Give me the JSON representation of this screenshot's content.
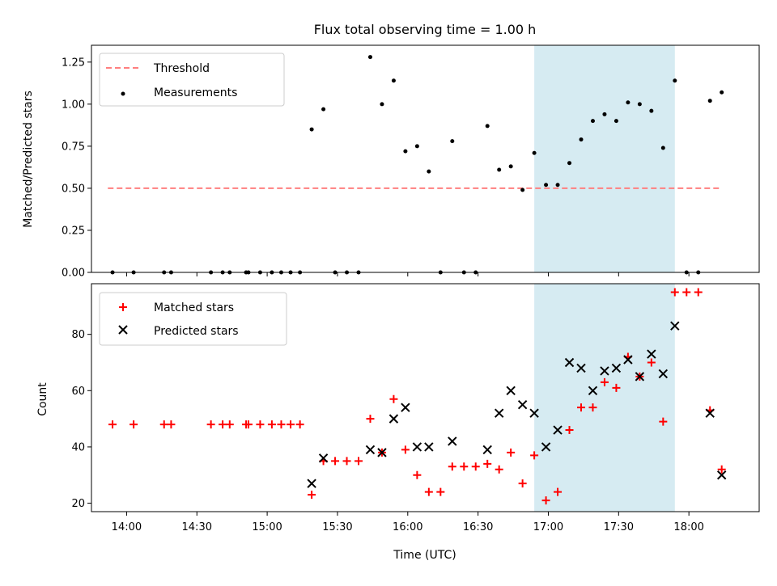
{
  "chart_data": [
    {
      "type": "scatter",
      "title": "Flux total observing time = 1.00 h",
      "xlabel": "",
      "ylabel": "Matched/Predicted stars",
      "xlim": [
        "13:45",
        "18:30"
      ],
      "ylim": [
        0,
        1.35
      ],
      "yticks": [
        "0.00",
        "0.25",
        "0.50",
        "0.75",
        "1.00",
        "1.25"
      ],
      "legend": "upper-left",
      "threshold": {
        "name": "Threshold",
        "value": 0.5,
        "x_range": [
          "13:52",
          "18:13"
        ],
        "color": "#ff7f7f"
      },
      "shaded_window": {
        "x_range": [
          "16:54",
          "17:54"
        ],
        "color": "#add8e6"
      },
      "series": [
        {
          "name": "Measurements",
          "color": "#000000",
          "x": [
            "13:54",
            "14:03",
            "14:16",
            "14:19",
            "14:36",
            "14:41",
            "14:44",
            "14:51",
            "14:52",
            "14:57",
            "15:02",
            "15:06",
            "15:10",
            "15:14",
            "15:19",
            "15:24",
            "15:29",
            "15:34",
            "15:39",
            "15:44",
            "15:49",
            "15:54",
            "15:59",
            "16:04",
            "16:09",
            "16:14",
            "16:19",
            "16:24",
            "16:29",
            "16:34",
            "16:39",
            "16:44",
            "16:49",
            "16:54",
            "16:59",
            "17:04",
            "17:09",
            "17:14",
            "17:19",
            "17:24",
            "17:29",
            "17:34",
            "17:39",
            "17:44",
            "17:49",
            "17:54",
            "17:59",
            "18:04",
            "18:09",
            "18:14"
          ],
          "y": [
            0,
            0,
            0,
            0,
            0,
            0,
            0,
            0,
            0,
            0,
            0,
            0,
            0,
            0,
            0.85,
            0.97,
            0,
            0,
            0,
            1.28,
            1.0,
            1.14,
            0.72,
            0.75,
            0.6,
            0,
            0.78,
            0,
            0,
            0.87,
            0.61,
            0.63,
            0.49,
            0.71,
            0.52,
            0.52,
            0.65,
            0.79,
            0.9,
            0.94,
            0.9,
            1.01,
            1.0,
            0.96,
            0.74,
            1.14,
            0,
            0,
            1.02,
            1.07
          ]
        }
      ]
    },
    {
      "type": "scatter",
      "title": "",
      "xlabel": "Time (UTC)",
      "ylabel": "Count",
      "xlim": [
        "13:45",
        "18:30"
      ],
      "ylim": [
        17,
        98
      ],
      "xticks": [
        "14:00",
        "14:30",
        "15:00",
        "15:30",
        "16:00",
        "16:30",
        "17:00",
        "17:30",
        "18:00"
      ],
      "yticks": [
        "20",
        "40",
        "60",
        "80"
      ],
      "legend": "upper-left",
      "shaded_window": {
        "x_range": [
          "16:54",
          "17:54"
        ],
        "color": "#add8e6"
      },
      "series": [
        {
          "name": "Matched stars",
          "color": "#ff0000",
          "marker": "+",
          "x": [
            "13:54",
            "14:03",
            "14:16",
            "14:19",
            "14:36",
            "14:41",
            "14:44",
            "14:51",
            "14:52",
            "14:57",
            "15:02",
            "15:06",
            "15:10",
            "15:14",
            "15:19",
            "15:24",
            "15:29",
            "15:34",
            "15:39",
            "15:44",
            "15:49",
            "15:54",
            "15:59",
            "16:04",
            "16:09",
            "16:14",
            "16:19",
            "16:24",
            "16:29",
            "16:34",
            "16:39",
            "16:44",
            "16:49",
            "16:54",
            "16:59",
            "17:04",
            "17:09",
            "17:14",
            "17:19",
            "17:24",
            "17:29",
            "17:34",
            "17:39",
            "17:44",
            "17:49",
            "17:54",
            "17:59",
            "18:04",
            "18:09",
            "18:14"
          ],
          "y": [
            48,
            48,
            48,
            48,
            48,
            48,
            48,
            48,
            48,
            48,
            48,
            48,
            48,
            48,
            23,
            35,
            35,
            35,
            35,
            50,
            38,
            57,
            39,
            30,
            24,
            24,
            33,
            33,
            33,
            34,
            32,
            38,
            27,
            37,
            21,
            24,
            46,
            54,
            54,
            63,
            61,
            72,
            65,
            70,
            49,
            95,
            95,
            95,
            53,
            32
          ]
        },
        {
          "name": "Predicted stars",
          "color": "#000000",
          "marker": "x",
          "x": [
            "15:19",
            "15:24",
            "15:44",
            "15:49",
            "15:54",
            "15:59",
            "16:04",
            "16:09",
            "16:19",
            "16:34",
            "16:39",
            "16:44",
            "16:49",
            "16:54",
            "16:59",
            "17:04",
            "17:09",
            "17:14",
            "17:19",
            "17:24",
            "17:29",
            "17:34",
            "17:39",
            "17:44",
            "17:49",
            "17:54",
            "18:09",
            "18:14"
          ],
          "y": [
            27,
            36,
            39,
            38,
            50,
            54,
            40,
            40,
            42,
            39,
            52,
            60,
            55,
            52,
            40,
            46,
            70,
            68,
            60,
            67,
            68,
            71,
            65,
            73,
            66,
            83,
            52,
            30
          ]
        }
      ]
    }
  ]
}
